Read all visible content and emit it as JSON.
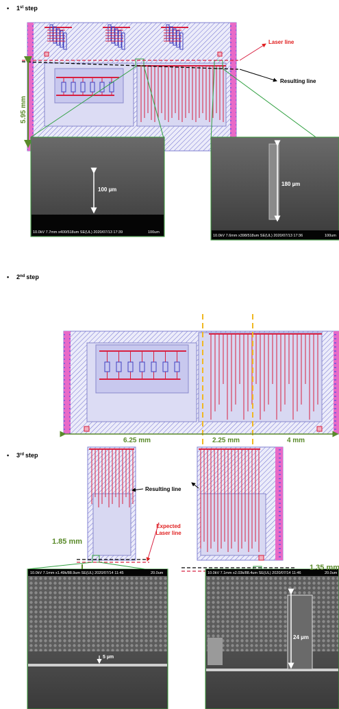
{
  "step1": {
    "bullet": "•",
    "number": "1",
    "ordinal": "st",
    "label": "step",
    "laser_line": "Laser line",
    "resulting_line": "Resulting line",
    "height": "5.95 mm",
    "sem_left": {
      "scale": "100 µm",
      "caption": "10.0kV 7.7mm x400/518um SE(UL) 2020/07/13 17:39",
      "bar": "100um"
    },
    "sem_right": {
      "scale": "180 µm",
      "caption": "10.0kV 7.6mm x398/518um SE(UL) 2020/07/13 17:36",
      "bar": "100um"
    }
  },
  "step2": {
    "bullet": "•",
    "number": "2",
    "ordinal": "nd",
    "label": "step",
    "widths": [
      "6.25 mm",
      "2.25 mm",
      "4 mm"
    ]
  },
  "step3": {
    "bullet": "•",
    "number": "3",
    "ordinal": "rd",
    "label": "step",
    "resulting_line": "Resulting line",
    "expected_laser_line": [
      "Expected",
      "Laser line"
    ],
    "left_height": "1.85 mm",
    "right_height": "1.35 mm",
    "sem_left": {
      "scale": "5 µm",
      "caption": "10.0kV 7.1mm x1.49k/88.9um SE(UL) 2020/07/14 11:45",
      "bar": "20.0um"
    },
    "sem_right": {
      "scale": "24 µm",
      "caption": "10.0kV 7.1mm x2.03k/88.4um SE(UL) 2020/07/14 11:46",
      "bar": "20.0um"
    }
  }
}
